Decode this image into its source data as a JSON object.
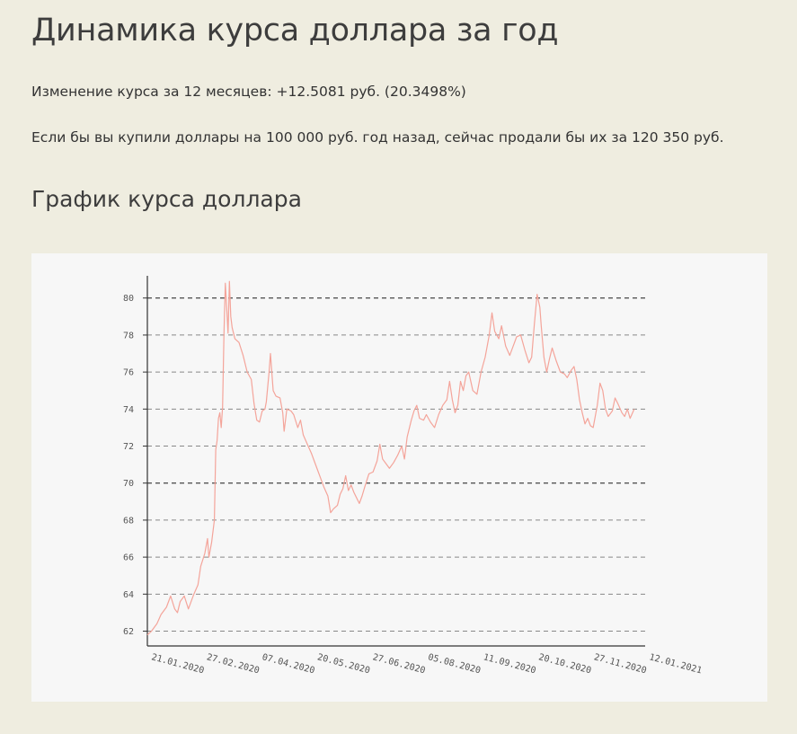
{
  "title": "Динамика курса доллара за год",
  "summary": {
    "change": "Изменение курса за 12 месяцев: +12.5081 руб. (20.3498%)",
    "investment": "Если бы вы купили доллары на 100 000  руб. год назад, сейчас продали бы их за 120 350 руб."
  },
  "chart_section_title": "График курса доллара",
  "colors": {
    "line": "#f4a49a",
    "background": "#efede0",
    "card": "#f7f7f7"
  },
  "chart_data": {
    "type": "line",
    "title": "",
    "xlabel": "",
    "ylabel": "",
    "ylim": [
      61.2,
      81.2
    ],
    "y_ticks": [
      62,
      64,
      66,
      68,
      70,
      72,
      74,
      76,
      78,
      80
    ],
    "y_ticks_bold": [
      70,
      80
    ],
    "grid": "horizontal-dashed",
    "x_start": "2020-01-21",
    "x_end": "2021-01-19",
    "x_tick_labels": [
      "21.01.2020",
      "27.02.2020",
      "07.04.2020",
      "20.05.2020",
      "27.06.2020",
      "05.08.2020",
      "11.09.2020",
      "20.10.2020",
      "27.11.2020",
      "12.01.2021"
    ],
    "series": [
      {
        "points": [
          [
            "2020-01-21",
            61.8
          ],
          [
            "2020-01-24",
            62.0
          ],
          [
            "2020-01-28",
            62.4
          ],
          [
            "2020-01-31",
            62.9
          ],
          [
            "2020-02-04",
            63.3
          ],
          [
            "2020-02-07",
            63.9
          ],
          [
            "2020-02-10",
            63.2
          ],
          [
            "2020-02-12",
            63.0
          ],
          [
            "2020-02-14",
            63.6
          ],
          [
            "2020-02-17",
            63.9
          ],
          [
            "2020-02-20",
            63.2
          ],
          [
            "2020-02-24",
            64.0
          ],
          [
            "2020-02-27",
            64.5
          ],
          [
            "2020-02-29",
            65.5
          ],
          [
            "2020-03-03",
            66.2
          ],
          [
            "2020-03-05",
            67.0
          ],
          [
            "2020-03-06",
            66.0
          ],
          [
            "2020-03-08",
            66.8
          ],
          [
            "2020-03-10",
            68.0
          ],
          [
            "2020-03-11",
            71.8
          ],
          [
            "2020-03-12",
            72.3
          ],
          [
            "2020-03-13",
            73.5
          ],
          [
            "2020-03-14",
            73.8
          ],
          [
            "2020-03-15",
            73.0
          ],
          [
            "2020-03-16",
            74.1
          ],
          [
            "2020-03-17",
            78.0
          ],
          [
            "2020-03-18",
            80.8
          ],
          [
            "2020-03-19",
            79.5
          ],
          [
            "2020-03-20",
            78.1
          ],
          [
            "2020-03-21",
            80.9
          ],
          [
            "2020-03-22",
            79.0
          ],
          [
            "2020-03-23",
            78.4
          ],
          [
            "2020-03-25",
            77.8
          ],
          [
            "2020-03-28",
            77.6
          ],
          [
            "2020-03-31",
            76.9
          ],
          [
            "2020-04-03",
            76.0
          ],
          [
            "2020-04-06",
            75.6
          ],
          [
            "2020-04-08",
            74.3
          ],
          [
            "2020-04-10",
            73.4
          ],
          [
            "2020-04-12",
            73.3
          ],
          [
            "2020-04-14",
            73.9
          ],
          [
            "2020-04-16",
            74.0
          ],
          [
            "2020-04-17",
            74.4
          ],
          [
            "2020-04-19",
            76.0
          ],
          [
            "2020-04-20",
            77.0
          ],
          [
            "2020-04-22",
            75.0
          ],
          [
            "2020-04-24",
            74.7
          ],
          [
            "2020-04-27",
            74.6
          ],
          [
            "2020-04-29",
            73.8
          ],
          [
            "2020-04-30",
            72.8
          ],
          [
            "2020-05-02",
            74.0
          ],
          [
            "2020-05-05",
            73.9
          ],
          [
            "2020-05-07",
            73.7
          ],
          [
            "2020-05-10",
            73.0
          ],
          [
            "2020-05-12",
            73.4
          ],
          [
            "2020-05-14",
            72.6
          ],
          [
            "2020-05-17",
            72.1
          ],
          [
            "2020-05-20",
            71.6
          ],
          [
            "2020-05-22",
            71.2
          ],
          [
            "2020-05-25",
            70.6
          ],
          [
            "2020-05-27",
            70.2
          ],
          [
            "2020-05-29",
            69.8
          ],
          [
            "2020-06-01",
            69.3
          ],
          [
            "2020-06-03",
            68.4
          ],
          [
            "2020-06-05",
            68.6
          ],
          [
            "2020-06-08",
            68.8
          ],
          [
            "2020-06-10",
            69.4
          ],
          [
            "2020-06-12",
            69.7
          ],
          [
            "2020-06-14",
            70.4
          ],
          [
            "2020-06-16",
            69.6
          ],
          [
            "2020-06-18",
            69.9
          ],
          [
            "2020-06-20",
            69.5
          ],
          [
            "2020-06-22",
            69.2
          ],
          [
            "2020-06-24",
            68.9
          ],
          [
            "2020-06-26",
            69.3
          ],
          [
            "2020-06-28",
            69.8
          ],
          [
            "2020-07-01",
            70.5
          ],
          [
            "2020-07-04",
            70.6
          ],
          [
            "2020-07-07",
            71.2
          ],
          [
            "2020-07-09",
            72.1
          ],
          [
            "2020-07-11",
            71.3
          ],
          [
            "2020-07-14",
            71.0
          ],
          [
            "2020-07-16",
            70.8
          ],
          [
            "2020-07-19",
            71.1
          ],
          [
            "2020-07-22",
            71.5
          ],
          [
            "2020-07-25",
            72.0
          ],
          [
            "2020-07-27",
            71.3
          ],
          [
            "2020-07-29",
            72.5
          ],
          [
            "2020-08-01",
            73.4
          ],
          [
            "2020-08-03",
            73.9
          ],
          [
            "2020-08-05",
            74.2
          ],
          [
            "2020-08-07",
            73.5
          ],
          [
            "2020-08-10",
            73.4
          ],
          [
            "2020-08-12",
            73.7
          ],
          [
            "2020-08-15",
            73.3
          ],
          [
            "2020-08-18",
            73.0
          ],
          [
            "2020-08-21",
            73.7
          ],
          [
            "2020-08-24",
            74.2
          ],
          [
            "2020-08-27",
            74.5
          ],
          [
            "2020-08-29",
            75.5
          ],
          [
            "2020-08-31",
            74.5
          ],
          [
            "2020-09-02",
            73.8
          ],
          [
            "2020-09-04",
            74.2
          ],
          [
            "2020-09-06",
            75.5
          ],
          [
            "2020-09-08",
            75.0
          ],
          [
            "2020-09-10",
            75.8
          ],
          [
            "2020-09-12",
            76.0
          ],
          [
            "2020-09-15",
            75.0
          ],
          [
            "2020-09-18",
            74.8
          ],
          [
            "2020-09-21",
            76.0
          ],
          [
            "2020-09-24",
            76.8
          ],
          [
            "2020-09-27",
            78.0
          ],
          [
            "2020-09-29",
            79.2
          ],
          [
            "2020-10-01",
            78.2
          ],
          [
            "2020-10-04",
            77.8
          ],
          [
            "2020-10-06",
            78.5
          ],
          [
            "2020-10-09",
            77.4
          ],
          [
            "2020-10-12",
            76.9
          ],
          [
            "2020-10-14",
            77.3
          ],
          [
            "2020-10-17",
            77.9
          ],
          [
            "2020-10-20",
            78.0
          ],
          [
            "2020-10-23",
            77.2
          ],
          [
            "2020-10-26",
            76.5
          ],
          [
            "2020-10-28",
            76.8
          ],
          [
            "2020-10-30",
            78.6
          ],
          [
            "2020-11-01",
            80.2
          ],
          [
            "2020-11-03",
            79.5
          ],
          [
            "2020-11-04",
            78.5
          ],
          [
            "2020-11-06",
            76.8
          ],
          [
            "2020-11-08",
            76.0
          ],
          [
            "2020-11-10",
            76.7
          ],
          [
            "2020-11-12",
            77.3
          ],
          [
            "2020-11-15",
            76.6
          ],
          [
            "2020-11-18",
            76.0
          ],
          [
            "2020-11-21",
            75.9
          ],
          [
            "2020-11-23",
            75.7
          ],
          [
            "2020-11-26",
            76.1
          ],
          [
            "2020-11-28",
            76.3
          ],
          [
            "2020-11-30",
            75.6
          ],
          [
            "2020-12-02",
            74.5
          ],
          [
            "2020-12-04",
            73.8
          ],
          [
            "2020-12-06",
            73.2
          ],
          [
            "2020-12-08",
            73.5
          ],
          [
            "2020-12-10",
            73.1
          ],
          [
            "2020-12-12",
            73.0
          ],
          [
            "2020-12-15",
            74.2
          ],
          [
            "2020-12-17",
            75.4
          ],
          [
            "2020-12-19",
            75.0
          ],
          [
            "2020-12-21",
            74.0
          ],
          [
            "2020-12-23",
            73.6
          ],
          [
            "2020-12-26",
            73.9
          ],
          [
            "2020-12-28",
            74.6
          ],
          [
            "2020-12-30",
            74.3
          ],
          [
            "2021-01-02",
            73.8
          ],
          [
            "2021-01-04",
            73.6
          ],
          [
            "2021-01-06",
            74.0
          ],
          [
            "2021-01-08",
            73.5
          ],
          [
            "2021-01-11",
            74.0
          ]
        ]
      }
    ]
  }
}
